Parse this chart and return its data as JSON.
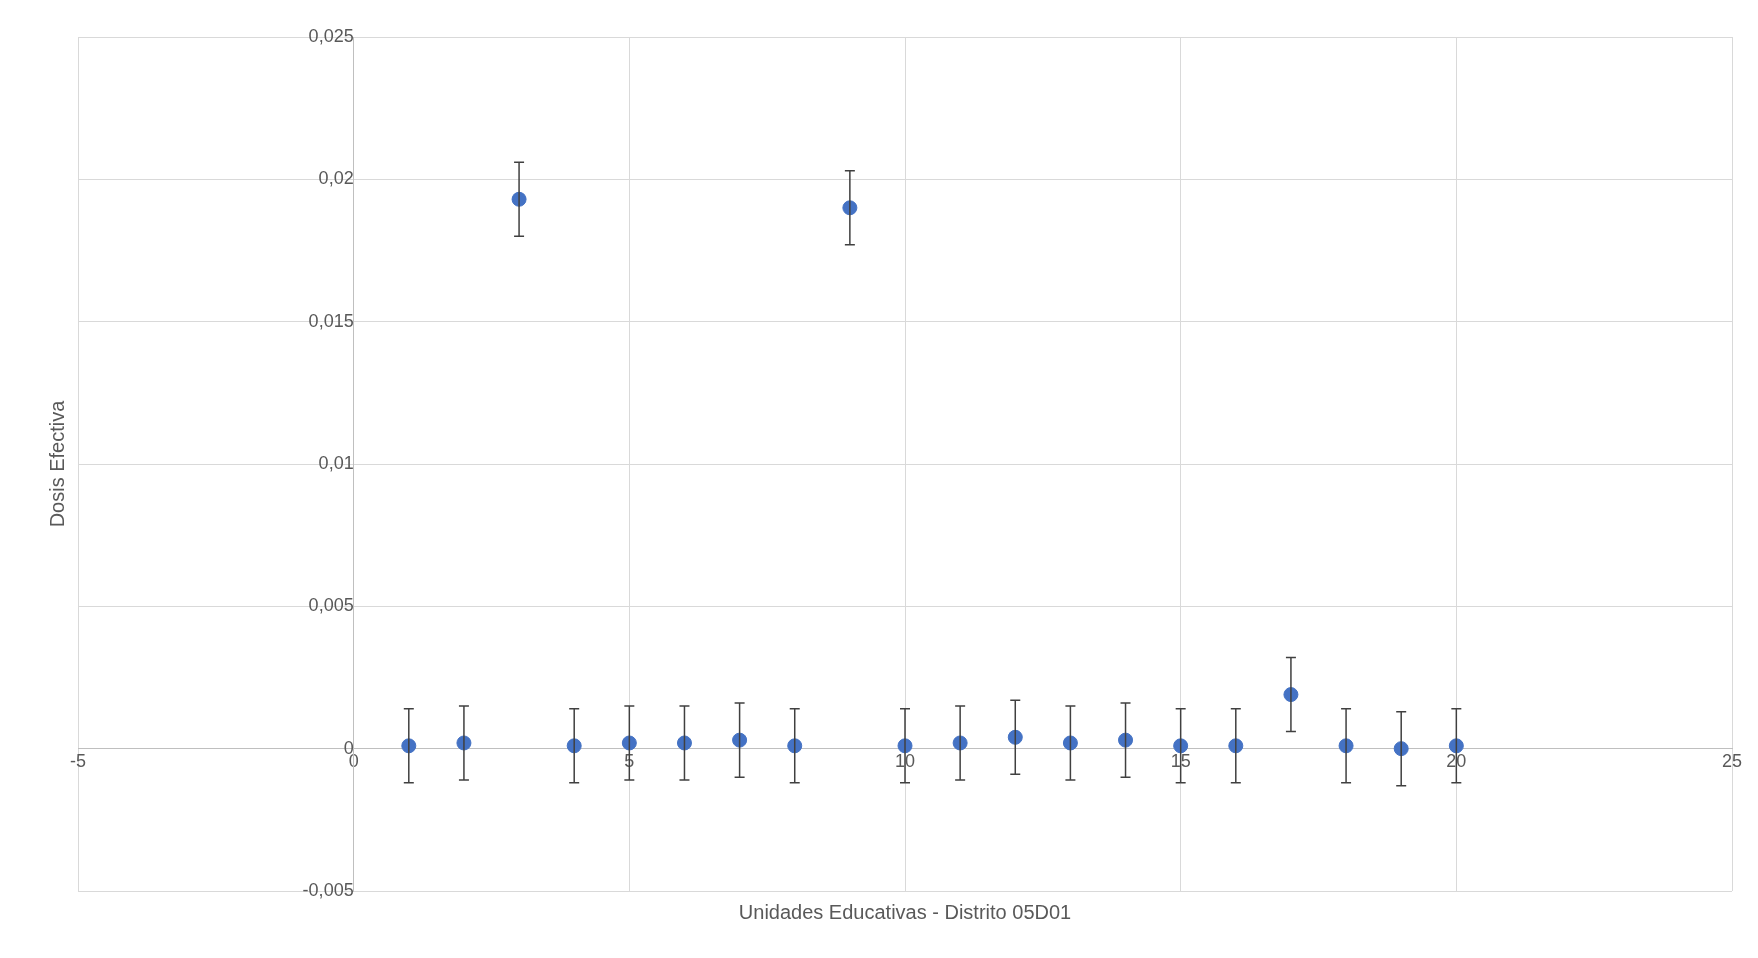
{
  "chart_data": {
    "type": "scatter",
    "xlabel": "Unidades Educativas - Distrito 05D01",
    "ylabel": "Dosis Efectiva",
    "x": [
      1,
      2,
      3,
      4,
      5,
      6,
      7,
      8,
      9,
      10,
      11,
      12,
      13,
      14,
      15,
      16,
      17,
      18,
      19,
      20
    ],
    "values": [
      0.0001,
      0.0002,
      0.0193,
      0.0001,
      0.0002,
      0.0002,
      0.0003,
      0.0001,
      0.019,
      0.0001,
      0.0002,
      0.0004,
      0.0002,
      0.0003,
      0.0001,
      0.0001,
      0.0019,
      0.0001,
      0,
      0.0001
    ],
    "errors": [
      0.0013,
      0.0013,
      0.0013,
      0.0013,
      0.0013,
      0.0013,
      0.0013,
      0.0013,
      0.0013,
      0.0013,
      0.0013,
      0.0013,
      0.0013,
      0.0013,
      0.0013,
      0.0013,
      0.0013,
      0.0013,
      0.0013,
      0.0013
    ],
    "color": "#4472c4",
    "marker": "circle",
    "grid": true,
    "xlim": [
      -5,
      25
    ],
    "xticks": [
      -5,
      0,
      5,
      10,
      15,
      20,
      25
    ],
    "ylim": [
      -0.005,
      0.025
    ],
    "yticks": [
      {
        "value": -0.005,
        "label": "-0,005"
      },
      0,
      {
        "value": 0.005,
        "label": "0,005"
      },
      {
        "value": 0.01,
        "label": "0,01"
      },
      {
        "value": 0.015,
        "label": "0,015"
      },
      {
        "value": 0.02,
        "label": "0,02"
      },
      {
        "value": 0.025,
        "label": "0,025"
      }
    ]
  }
}
